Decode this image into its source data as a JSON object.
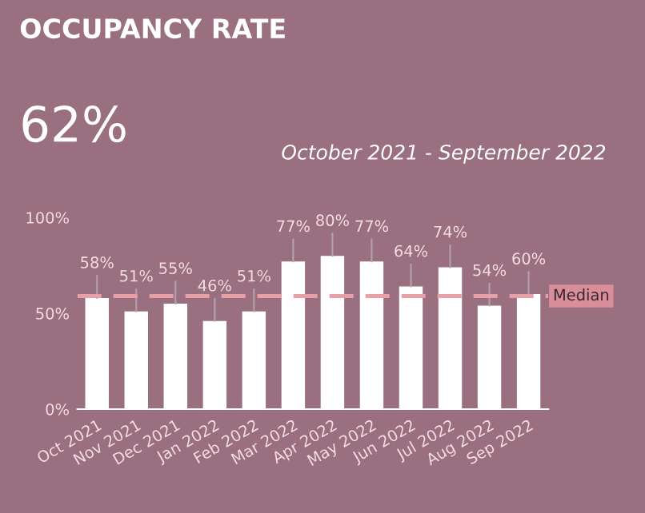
{
  "chart_data": {
    "type": "bar",
    "title": "OCCUPANCY RATE",
    "subtitle": "October 2021 - September 2022",
    "annotations": [
      "62%"
    ],
    "categories": [
      "Oct 2021",
      "Nov 2021",
      "Dec 2021",
      "Jan 2022",
      "Feb 2022",
      "Mar 2022",
      "Apr 2022",
      "May 2022",
      "Jun 2022",
      "Jul 2022",
      "Aug 2022",
      "Sep 2022"
    ],
    "values": [
      58,
      51,
      55,
      46,
      51,
      77,
      80,
      77,
      64,
      74,
      54,
      60
    ],
    "value_labels": [
      "58%",
      "51%",
      "55%",
      "46%",
      "51%",
      "77%",
      "80%",
      "77%",
      "64%",
      "74%",
      "54%",
      "60%"
    ],
    "color": "#ffffff",
    "ylim": [
      0,
      100
    ],
    "yticks": [
      {
        "value": 0,
        "label": "0%"
      },
      {
        "value": 50,
        "label": "50%"
      },
      {
        "value": 100,
        "label": "100%"
      }
    ],
    "ref_lines": [
      {
        "axis": "y",
        "value": 59,
        "label": "Median",
        "color": "#e8a0a8",
        "line_style": "dashed"
      }
    ],
    "grid": false
  }
}
